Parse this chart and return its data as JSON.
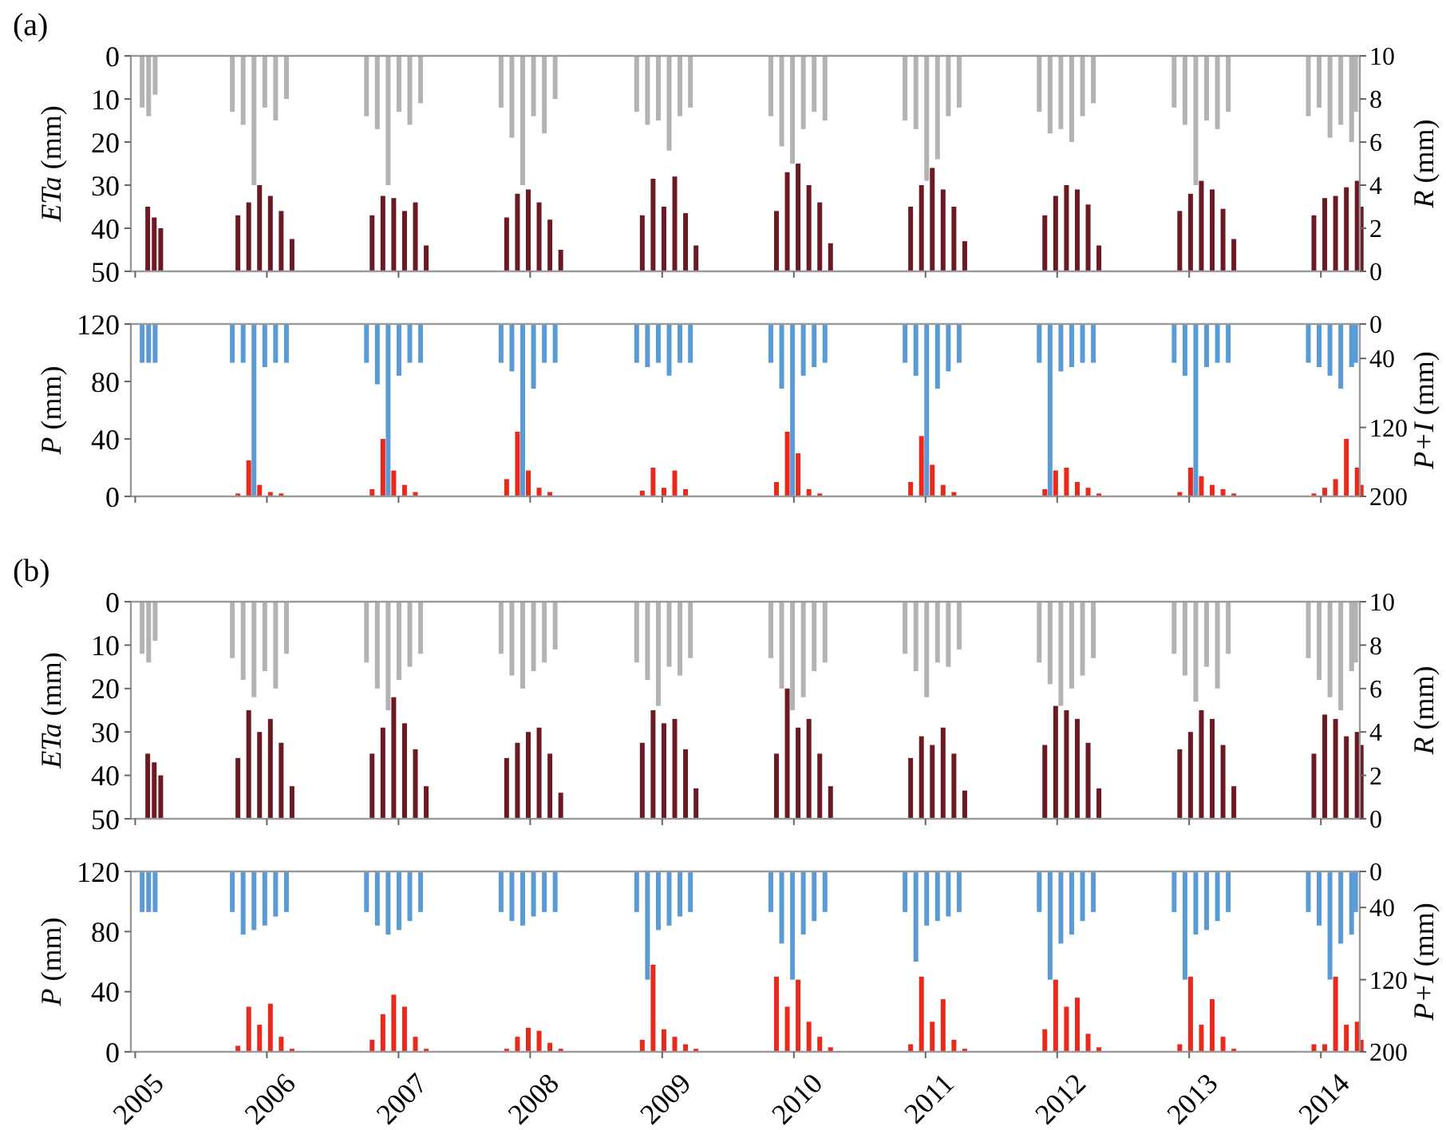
{
  "chart_data": [
    {
      "type": "bar",
      "title": "(a)",
      "ylabel": "ETa (mm)",
      "y2label": "R (mm)",
      "tick_labels": "y",
      "x": [
        "2005-01-28",
        "2005-02-15",
        "2005-03-05",
        "2005-10-05",
        "2005-11-04",
        "2005-12-04",
        "2006-01-03",
        "2006-02-02",
        "2006-03-04",
        "2006-10-12",
        "2006-11-11",
        "2006-12-11",
        "2007-01-10",
        "2007-02-09",
        "2007-03-11",
        "2007-10-20",
        "2007-11-19",
        "2007-12-19",
        "2008-01-18",
        "2008-02-17",
        "2008-03-18",
        "2008-10-30",
        "2008-11-29",
        "2008-12-29",
        "2009-01-28",
        "2009-02-27",
        "2009-03-28",
        "2009-11-06",
        "2009-12-06",
        "2010-01-05",
        "2010-02-04",
        "2010-03-06",
        "2010-04-05",
        "2010-11-13",
        "2010-12-13",
        "2011-01-12",
        "2011-02-11",
        "2011-03-13",
        "2011-04-12",
        "2011-11-20",
        "2011-12-20",
        "2012-01-19",
        "2012-02-18",
        "2012-03-19",
        "2012-04-18",
        "2012-11-28",
        "2012-12-28",
        "2013-01-27",
        "2013-02-26",
        "2013-03-28",
        "2013-04-27",
        "2013-12-05",
        "2014-01-04",
        "2014-02-03",
        "2014-03-05",
        "2014-04-04",
        "2014-04-15"
      ],
      "xlim": [
        "2004-12-20",
        "2014-04-19"
      ],
      "xticks": [
        "2005",
        "2006",
        "2007",
        "2008",
        "2009",
        "2010",
        "2011",
        "2012",
        "2013",
        "2014"
      ],
      "ylim": [
        50,
        0
      ],
      "yticks": [
        0,
        10,
        20,
        30,
        40,
        50
      ],
      "y2lim": [
        0,
        10
      ],
      "y2ticks": [
        0,
        2,
        4,
        6,
        8,
        10
      ],
      "series": [
        {
          "color": "#b3b3b3",
          "values": [
            12,
            14,
            9,
            13,
            16,
            30,
            12,
            15,
            10,
            14,
            17,
            30,
            13,
            16,
            11,
            12,
            19,
            30,
            14,
            18,
            10,
            13,
            16,
            15,
            22,
            14,
            12,
            14,
            21,
            25,
            17,
            13,
            15,
            15,
            17,
            29,
            24,
            14,
            12,
            13,
            18,
            17,
            20,
            14,
            11,
            12,
            16,
            30,
            15,
            17,
            13,
            14,
            12,
            19,
            16,
            20,
            13
          ]
        },
        {
          "color": "#6b1a24",
          "axis": "y2",
          "values": [
            3.0,
            2.5,
            2.0,
            2.6,
            3.2,
            4.0,
            3.5,
            2.8,
            1.5,
            2.6,
            3.5,
            3.4,
            2.8,
            3.2,
            1.2,
            2.5,
            3.6,
            3.8,
            3.2,
            2.4,
            1.0,
            2.6,
            4.3,
            3.0,
            4.4,
            2.7,
            1.2,
            2.8,
            4.6,
            5.0,
            4.0,
            3.2,
            1.3,
            3.0,
            4.0,
            4.8,
            3.8,
            3.0,
            1.4,
            2.6,
            3.5,
            4.0,
            3.8,
            3.1,
            1.2,
            2.8,
            3.6,
            4.2,
            3.8,
            2.9,
            1.5,
            2.6,
            3.4,
            3.5,
            3.9,
            4.2,
            3.0
          ]
        }
      ]
    },
    {
      "type": "bar",
      "ylabel": "P (mm)",
      "y2label": "P+I (mm)",
      "tick_labels": "y",
      "x": [
        "2005-01-28",
        "2005-02-15",
        "2005-03-05",
        "2005-10-05",
        "2005-11-04",
        "2005-12-04",
        "2006-01-03",
        "2006-02-02",
        "2006-03-04",
        "2006-10-12",
        "2006-11-11",
        "2006-12-11",
        "2007-01-10",
        "2007-02-09",
        "2007-03-11",
        "2007-10-20",
        "2007-11-19",
        "2007-12-19",
        "2008-01-18",
        "2008-02-17",
        "2008-03-18",
        "2008-10-30",
        "2008-11-29",
        "2008-12-29",
        "2009-01-28",
        "2009-02-27",
        "2009-03-28",
        "2009-11-06",
        "2009-12-06",
        "2010-01-05",
        "2010-02-04",
        "2010-03-06",
        "2010-04-05",
        "2010-11-13",
        "2010-12-13",
        "2011-01-12",
        "2011-02-11",
        "2011-03-13",
        "2011-04-12",
        "2011-11-20",
        "2011-12-20",
        "2012-01-19",
        "2012-02-18",
        "2012-03-19",
        "2012-04-18",
        "2012-11-28",
        "2012-12-28",
        "2013-01-27",
        "2013-02-26",
        "2013-03-28",
        "2013-04-27",
        "2013-12-05",
        "2014-01-04",
        "2014-02-03",
        "2014-03-05",
        "2014-04-04",
        "2014-04-15"
      ],
      "xlim": [
        "2004-12-20",
        "2014-04-19"
      ],
      "xticks": [
        "2005",
        "2006",
        "2007",
        "2008",
        "2009",
        "2010",
        "2011",
        "2012",
        "2013",
        "2014"
      ],
      "ylim": [
        0,
        120
      ],
      "yticks": [
        0,
        40,
        80,
        120
      ],
      "y2lim": [
        200,
        0
      ],
      "y2ticks": [
        0,
        40,
        120,
        200
      ],
      "series": [
        {
          "color": "#5b9bd5",
          "axis": "y2",
          "values": [
            45,
            45,
            45,
            45,
            45,
            200,
            50,
            45,
            45,
            45,
            70,
            200,
            60,
            45,
            45,
            45,
            55,
            200,
            75,
            45,
            45,
            45,
            50,
            45,
            60,
            45,
            45,
            45,
            75,
            200,
            60,
            50,
            45,
            45,
            60,
            200,
            75,
            55,
            45,
            45,
            200,
            55,
            50,
            45,
            45,
            45,
            60,
            200,
            50,
            45,
            45,
            45,
            50,
            60,
            75,
            50,
            45
          ]
        },
        {
          "color": "#e8291c",
          "values": [
            0,
            0,
            0,
            2,
            25,
            8,
            3,
            2,
            0,
            5,
            40,
            18,
            8,
            3,
            0,
            12,
            45,
            18,
            6,
            3,
            0,
            4,
            20,
            6,
            18,
            5,
            0,
            10,
            45,
            30,
            5,
            2,
            0,
            10,
            42,
            22,
            8,
            3,
            0,
            5,
            18,
            20,
            10,
            6,
            2,
            3,
            20,
            14,
            8,
            5,
            2,
            2,
            6,
            12,
            40,
            20,
            8
          ]
        }
      ]
    },
    {
      "type": "bar",
      "title": "(b)",
      "ylabel": "ETa (mm)",
      "y2label": "R (mm)",
      "tick_labels": "y",
      "x": [
        "2005-01-28",
        "2005-02-15",
        "2005-03-05",
        "2005-10-05",
        "2005-11-04",
        "2005-12-04",
        "2006-01-03",
        "2006-02-02",
        "2006-03-04",
        "2006-10-12",
        "2006-11-11",
        "2006-12-11",
        "2007-01-10",
        "2007-02-09",
        "2007-03-11",
        "2007-10-20",
        "2007-11-19",
        "2007-12-19",
        "2008-01-18",
        "2008-02-17",
        "2008-03-18",
        "2008-10-30",
        "2008-11-29",
        "2008-12-29",
        "2009-01-28",
        "2009-02-27",
        "2009-03-28",
        "2009-11-06",
        "2009-12-06",
        "2010-01-05",
        "2010-02-04",
        "2010-03-06",
        "2010-04-05",
        "2010-11-13",
        "2010-12-13",
        "2011-01-12",
        "2011-02-11",
        "2011-03-13",
        "2011-04-12",
        "2011-11-20",
        "2011-12-20",
        "2012-01-19",
        "2012-02-18",
        "2012-03-19",
        "2012-04-18",
        "2012-11-28",
        "2012-12-28",
        "2013-01-27",
        "2013-02-26",
        "2013-03-28",
        "2013-04-27",
        "2013-12-05",
        "2014-01-04",
        "2014-02-03",
        "2014-03-05",
        "2014-04-04",
        "2014-04-15"
      ],
      "xlim": [
        "2004-12-20",
        "2014-04-19"
      ],
      "xticks": [
        "2005",
        "2006",
        "2007",
        "2008",
        "2009",
        "2010",
        "2011",
        "2012",
        "2013",
        "2014"
      ],
      "ylim": [
        50,
        0
      ],
      "yticks": [
        0,
        10,
        20,
        30,
        40,
        50
      ],
      "y2lim": [
        0,
        10
      ],
      "y2ticks": [
        0,
        2,
        4,
        6,
        8,
        10
      ],
      "series": [
        {
          "color": "#b3b3b3",
          "values": [
            12,
            14,
            9,
            13,
            18,
            22,
            16,
            20,
            12,
            14,
            20,
            25,
            18,
            15,
            12,
            12,
            17,
            20,
            16,
            14,
            11,
            14,
            18,
            24,
            15,
            17,
            13,
            13,
            20,
            25,
            22,
            16,
            14,
            12,
            16,
            22,
            14,
            15,
            11,
            14,
            19,
            24,
            20,
            17,
            13,
            12,
            17,
            23,
            15,
            20,
            12,
            13,
            18,
            22,
            25,
            16,
            14
          ]
        },
        {
          "color": "#6b1a24",
          "axis": "y2",
          "values": [
            3.0,
            2.6,
            2.0,
            2.8,
            5.0,
            4.0,
            4.6,
            3.5,
            1.5,
            3.0,
            4.2,
            5.6,
            4.4,
            3.2,
            1.5,
            2.8,
            3.5,
            4.0,
            4.2,
            3.0,
            1.2,
            3.5,
            5.0,
            4.4,
            4.6,
            3.2,
            1.4,
            3.0,
            6.0,
            4.2,
            4.6,
            3.0,
            1.5,
            2.8,
            3.8,
            3.4,
            4.2,
            3.0,
            1.3,
            3.4,
            5.2,
            5.0,
            4.6,
            3.5,
            1.4,
            3.2,
            4.0,
            5.0,
            4.6,
            3.4,
            1.5,
            3.0,
            4.8,
            4.6,
            3.8,
            4.0,
            3.4
          ]
        }
      ]
    },
    {
      "type": "bar",
      "ylabel": "P (mm)",
      "y2label": "P+I (mm)",
      "x": [
        "2005-01-28",
        "2005-02-15",
        "2005-03-05",
        "2005-10-05",
        "2005-11-04",
        "2005-12-04",
        "2006-01-03",
        "2006-02-02",
        "2006-03-04",
        "2006-10-12",
        "2006-11-11",
        "2006-12-11",
        "2007-01-10",
        "2007-02-09",
        "2007-03-11",
        "2007-10-20",
        "2007-11-19",
        "2007-12-19",
        "2008-01-18",
        "2008-02-17",
        "2008-03-18",
        "2008-10-30",
        "2008-11-29",
        "2008-12-29",
        "2009-01-28",
        "2009-02-27",
        "2009-03-28",
        "2009-11-06",
        "2009-12-06",
        "2010-01-05",
        "2010-02-04",
        "2010-03-06",
        "2010-04-05",
        "2010-11-13",
        "2010-12-13",
        "2011-01-12",
        "2011-02-11",
        "2011-03-13",
        "2011-04-12",
        "2011-11-20",
        "2011-12-20",
        "2012-01-19",
        "2012-02-18",
        "2012-03-19",
        "2012-04-18",
        "2012-11-28",
        "2012-12-28",
        "2013-01-27",
        "2013-02-26",
        "2013-03-28",
        "2013-04-27",
        "2013-12-05",
        "2014-01-04",
        "2014-02-03",
        "2014-03-05",
        "2014-04-04",
        "2014-04-15"
      ],
      "xlim": [
        "2004-12-20",
        "2014-04-19"
      ],
      "xticks": [
        "2005",
        "2006",
        "2007",
        "2008",
        "2009",
        "2010",
        "2011",
        "2012",
        "2013",
        "2014"
      ],
      "ylim": [
        0,
        120
      ],
      "yticks": [
        0,
        40,
        80,
        120
      ],
      "y2lim": [
        200,
        0
      ],
      "y2ticks": [
        0,
        40,
        120,
        200
      ],
      "series": [
        {
          "color": "#5b9bd5",
          "axis": "y2",
          "values": [
            45,
            45,
            45,
            45,
            70,
            65,
            60,
            50,
            45,
            45,
            60,
            70,
            65,
            55,
            45,
            45,
            55,
            60,
            50,
            45,
            45,
            45,
            120,
            65,
            60,
            50,
            45,
            45,
            80,
            120,
            70,
            55,
            45,
            45,
            100,
            60,
            55,
            50,
            45,
            45,
            120,
            80,
            70,
            55,
            45,
            45,
            120,
            70,
            65,
            55,
            45,
            45,
            60,
            120,
            80,
            70,
            45
          ]
        },
        {
          "color": "#e8291c",
          "values": [
            0,
            0,
            0,
            4,
            30,
            18,
            32,
            10,
            2,
            8,
            25,
            38,
            30,
            10,
            2,
            2,
            10,
            16,
            14,
            6,
            2,
            8,
            58,
            15,
            10,
            5,
            2,
            50,
            30,
            48,
            20,
            10,
            3,
            5,
            50,
            20,
            35,
            8,
            2,
            15,
            48,
            30,
            36,
            12,
            3,
            5,
            50,
            18,
            35,
            10,
            2,
            5,
            5,
            50,
            18,
            20,
            8
          ]
        }
      ]
    }
  ]
}
